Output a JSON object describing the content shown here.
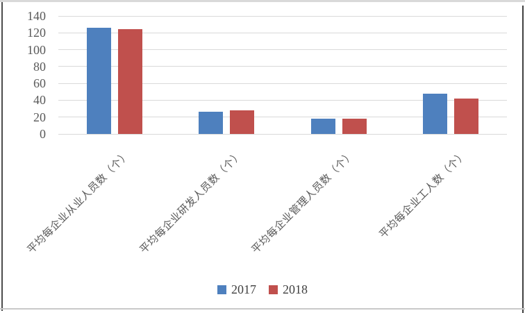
{
  "chart_data": {
    "type": "bar",
    "title": "",
    "xlabel": "",
    "ylabel": "",
    "categories": [
      "平均每企业从业人员数（个）",
      "平均每企业研发人员数（个）",
      "平均每企业管理人员数（个）",
      "平均每企业工人数（个）"
    ],
    "series": [
      {
        "name": "2017",
        "color": "#4E80BE",
        "values": [
          126,
          26,
          18,
          48
        ]
      },
      {
        "name": "2018",
        "color": "#C0504D",
        "values": [
          124,
          28,
          18,
          42
        ]
      }
    ],
    "ylim": [
      0,
      140
    ],
    "yticks": [
      0,
      20,
      40,
      60,
      80,
      100,
      120,
      140
    ],
    "grid": true,
    "legend_position": "bottom"
  },
  "colors": {
    "gridline": "#D9D9D9",
    "axis_text": "#595959",
    "background": "#FFFFFF",
    "frame_top": "#D9D9D9",
    "frame_left": "#4C4C4C",
    "frame_right": "#3F3F3F",
    "frame_bottom": "#C9C9C9"
  }
}
